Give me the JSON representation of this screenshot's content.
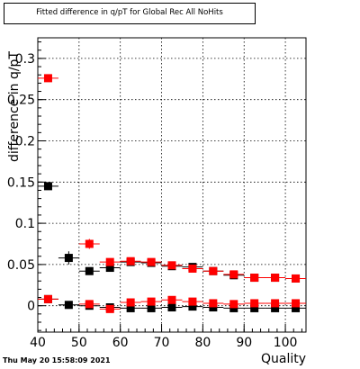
{
  "timestamp": "Thu May 20 15:58:09 2021",
  "chart_data": {
    "type": "scatter",
    "title": "Fitted difference in q/pT for Global Rec All NoHits",
    "xlabel": "Quality",
    "ylabel": "difference in q/pT",
    "xlim": [
      40,
      105
    ],
    "ylim": [
      -0.032,
      0.325
    ],
    "xticks": [
      40,
      50,
      60,
      70,
      80,
      90,
      100
    ],
    "xtick_labels": [
      "40",
      "50",
      "60",
      "70",
      "80",
      "90",
      "100"
    ],
    "yticks": [
      0,
      0.05,
      0.1,
      0.15,
      0.2,
      0.25,
      0.3
    ],
    "ytick_labels": [
      "0",
      "0.05",
      "0.1",
      "0.15",
      "0.2",
      "0.25",
      "0.3"
    ],
    "grid": true,
    "xerr": 2.5,
    "series": [
      {
        "color": "#000000",
        "x": [
          42.5,
          47.5,
          52.5,
          57.5,
          62.5,
          67.5,
          72.5,
          77.5,
          82.5,
          87.5,
          92.5,
          97.5,
          102.5
        ],
        "y": [
          0.145,
          0.058,
          0.042,
          0.046,
          0.053,
          0.052,
          0.048,
          0.047,
          0.042,
          0.037,
          0.034,
          0.034,
          0.033
        ],
        "yerr": [
          0.002,
          0.008,
          0.003,
          0.002,
          0.002,
          0.002,
          0.002,
          0.002,
          0.002,
          0.002,
          0.002,
          0.002,
          0.002
        ]
      },
      {
        "color": "#000000",
        "x": [
          42.5,
          47.5,
          52.5,
          57.5,
          62.5,
          67.5,
          72.5,
          77.5,
          82.5,
          87.5,
          92.5,
          97.5,
          102.5
        ],
        "y": [
          0.008,
          0.001,
          0.0,
          -0.002,
          -0.003,
          -0.003,
          -0.002,
          -0.001,
          -0.002,
          -0.003,
          -0.003,
          -0.003,
          -0.003
        ],
        "yerr": [
          0.001,
          0.004,
          0.002,
          0.001,
          0.001,
          0.001,
          0.001,
          0.001,
          0.001,
          0.001,
          0.001,
          0.001,
          0.001
        ]
      },
      {
        "color": "#ff0000",
        "x": [
          42.5,
          52.5,
          57.5,
          62.5,
          67.5,
          72.5,
          77.5,
          82.5,
          87.5,
          92.5,
          97.5,
          102.5
        ],
        "y": [
          0.276,
          0.075,
          0.053,
          0.054,
          0.053,
          0.049,
          0.045,
          0.042,
          0.038,
          0.034,
          0.034,
          0.033
        ],
        "yerr": [
          0.002,
          0.006,
          0.002,
          0.002,
          0.002,
          0.002,
          0.002,
          0.002,
          0.002,
          0.002,
          0.002,
          0.002
        ]
      },
      {
        "color": "#ff0000",
        "x": [
          42.5,
          52.5,
          57.5,
          62.5,
          67.5,
          72.5,
          77.5,
          82.5,
          87.5,
          92.5,
          97.5,
          102.5
        ],
        "y": [
          0.008,
          0.002,
          -0.004,
          0.004,
          0.005,
          0.007,
          0.005,
          0.003,
          0.002,
          0.003,
          0.003,
          0.003
        ],
        "yerr": [
          0.001,
          0.004,
          0.002,
          0.001,
          0.001,
          0.001,
          0.001,
          0.001,
          0.001,
          0.001,
          0.001,
          0.001
        ]
      }
    ]
  }
}
